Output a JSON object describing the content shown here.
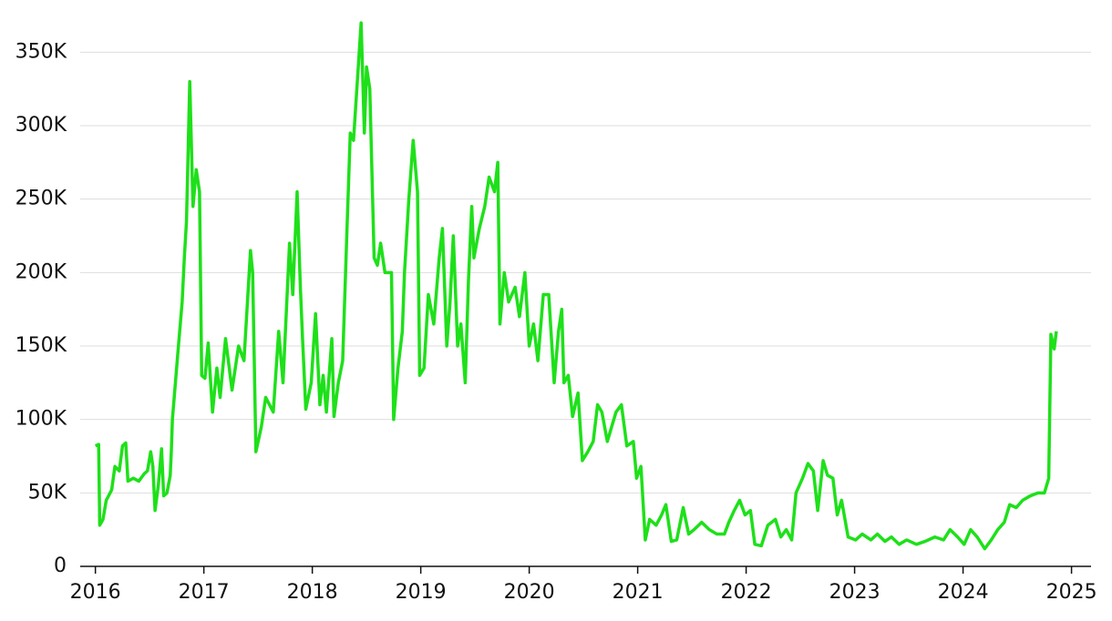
{
  "chart_data": {
    "type": "line",
    "color": "#1ee01a",
    "grid": true,
    "xlim": [
      2015.86,
      2025.18
    ],
    "xticks": [
      2016,
      2017,
      2018,
      2019,
      2020,
      2021,
      2022,
      2023,
      2024,
      2025
    ],
    "ylim": [
      0,
      375000
    ],
    "yticks": [
      {
        "value": 0,
        "label": "0"
      },
      {
        "value": 50000,
        "label": "50K"
      },
      {
        "value": 100000,
        "label": "100K"
      },
      {
        "value": 150000,
        "label": "150K"
      },
      {
        "value": 200000,
        "label": "200K"
      },
      {
        "value": 250000,
        "label": "250K"
      },
      {
        "value": 300000,
        "label": "300K"
      },
      {
        "value": 350000,
        "label": "350K"
      }
    ],
    "x": [
      2016.0,
      2016.03,
      2016.04,
      2016.07,
      2016.1,
      2016.15,
      2016.18,
      2016.22,
      2016.25,
      2016.28,
      2016.3,
      2016.35,
      2016.4,
      2016.45,
      2016.48,
      2016.51,
      2016.53,
      2016.55,
      2016.58,
      2016.61,
      2016.63,
      2016.66,
      2016.69,
      2016.7,
      2016.71,
      2016.76,
      2016.8,
      2016.82,
      2016.84,
      2016.87,
      2016.9,
      2016.93,
      2016.96,
      2016.98,
      2017.01,
      2017.04,
      2017.08,
      2017.12,
      2017.15,
      2017.2,
      2017.26,
      2017.32,
      2017.37,
      2017.43,
      2017.45,
      2017.48,
      2017.53,
      2017.57,
      2017.64,
      2017.69,
      2017.73,
      2017.79,
      2017.82,
      2017.86,
      2017.89,
      2017.91,
      2017.94,
      2017.99,
      2018.03,
      2018.07,
      2018.1,
      2018.13,
      2018.18,
      2018.2,
      2018.24,
      2018.28,
      2018.32,
      2018.35,
      2018.38,
      2018.45,
      2018.48,
      2018.5,
      2018.53,
      2018.57,
      2018.6,
      2018.63,
      2018.67,
      2018.73,
      2018.75,
      2018.79,
      2018.83,
      2018.85,
      2018.89,
      2018.93,
      2018.97,
      2018.99,
      2019.03,
      2019.07,
      2019.12,
      2019.17,
      2019.2,
      2019.24,
      2019.27,
      2019.3,
      2019.34,
      2019.37,
      2019.41,
      2019.44,
      2019.47,
      2019.49,
      2019.54,
      2019.59,
      2019.63,
      2019.68,
      2019.71,
      2019.73,
      2019.77,
      2019.81,
      2019.87,
      2019.91,
      2019.96,
      2020.0,
      2020.04,
      2020.08,
      2020.13,
      2020.18,
      2020.23,
      2020.27,
      2020.3,
      2020.32,
      2020.36,
      2020.4,
      2020.45,
      2020.49,
      2020.54,
      2020.59,
      2020.63,
      2020.67,
      2020.72,
      2020.76,
      2020.8,
      2020.85,
      2020.9,
      2020.96,
      2020.99,
      2021.03,
      2021.07,
      2021.11,
      2021.17,
      2021.22,
      2021.26,
      2021.31,
      2021.36,
      2021.42,
      2021.47,
      2021.52,
      2021.59,
      2021.66,
      2021.73,
      2021.8,
      2021.84,
      2021.89,
      2021.94,
      2021.99,
      2022.04,
      2022.08,
      2022.14,
      2022.2,
      2022.27,
      2022.32,
      2022.37,
      2022.42,
      2022.46,
      2022.52,
      2022.57,
      2022.62,
      2022.66,
      2022.71,
      2022.75,
      2022.8,
      2022.84,
      2022.88,
      2022.94,
      2023.01,
      2023.07,
      2023.15,
      2023.21,
      2023.28,
      2023.34,
      2023.41,
      2023.48,
      2023.57,
      2023.65,
      2023.74,
      2023.82,
      2023.88,
      2023.95,
      2024.01,
      2024.07,
      2024.13,
      2024.2,
      2024.26,
      2024.32,
      2024.38,
      2024.43,
      2024.49,
      2024.55,
      2024.62,
      2024.69,
      2024.75,
      2024.79,
      2024.81,
      2024.84,
      2024.86
    ],
    "values": [
      82000,
      83000,
      28000,
      32000,
      45000,
      52000,
      68000,
      65000,
      82000,
      84000,
      58000,
      60000,
      58000,
      63000,
      65000,
      78000,
      68000,
      38000,
      55000,
      80000,
      48000,
      50000,
      62000,
      78000,
      100000,
      145000,
      180000,
      210000,
      235000,
      330000,
      245000,
      270000,
      255000,
      130000,
      128000,
      152000,
      105000,
      135000,
      115000,
      155000,
      120000,
      150000,
      140000,
      215000,
      200000,
      78000,
      95000,
      115000,
      105000,
      160000,
      125000,
      220000,
      185000,
      255000,
      190000,
      155000,
      107000,
      125000,
      172000,
      110000,
      130000,
      105000,
      155000,
      102000,
      125000,
      140000,
      230000,
      295000,
      290000,
      370000,
      295000,
      340000,
      325000,
      210000,
      205000,
      220000,
      200000,
      200000,
      100000,
      135000,
      160000,
      200000,
      250000,
      290000,
      255000,
      130000,
      135000,
      185000,
      165000,
      210000,
      230000,
      150000,
      180000,
      225000,
      150000,
      165000,
      125000,
      195000,
      245000,
      210000,
      230000,
      245000,
      265000,
      255000,
      275000,
      165000,
      200000,
      180000,
      190000,
      170000,
      200000,
      150000,
      165000,
      140000,
      185000,
      185000,
      125000,
      160000,
      175000,
      125000,
      130000,
      102000,
      118000,
      72000,
      78000,
      85000,
      110000,
      105000,
      85000,
      95000,
      105000,
      110000,
      82000,
      85000,
      60000,
      68000,
      18000,
      32000,
      28000,
      35000,
      42000,
      17000,
      18000,
      40000,
      22000,
      25000,
      30000,
      25000,
      22000,
      22000,
      30000,
      38000,
      45000,
      35000,
      38000,
      15000,
      14000,
      28000,
      32000,
      20000,
      25000,
      18000,
      50000,
      60000,
      70000,
      65000,
      38000,
      72000,
      62000,
      60000,
      35000,
      45000,
      20000,
      18000,
      22000,
      18000,
      22000,
      17000,
      20000,
      15000,
      18000,
      15000,
      17000,
      20000,
      18000,
      25000,
      20000,
      15000,
      25000,
      20000,
      12000,
      18000,
      25000,
      30000,
      42000,
      40000,
      45000,
      48000,
      50000,
      50000,
      60000,
      158000,
      148000,
      160000
    ]
  }
}
